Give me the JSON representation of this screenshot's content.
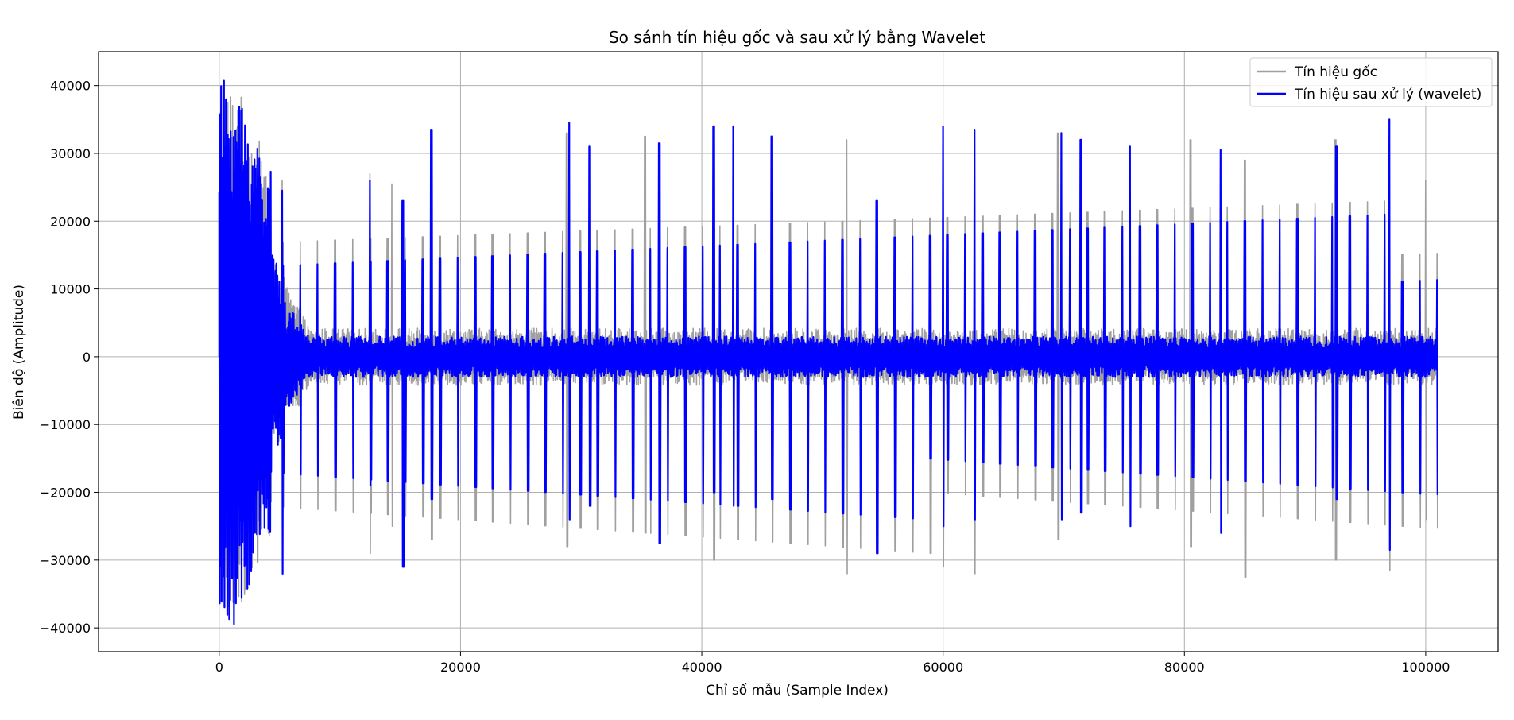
{
  "chart_data": {
    "type": "line",
    "title": "So sánh tín hiệu gốc và sau xử lý bằng Wavelet",
    "xlabel": "Chỉ số mẫu (Sample Index)",
    "ylabel": "Biên độ (Amplitude)",
    "xlim": [
      -10000,
      106000
    ],
    "ylim": [
      -43500,
      45000
    ],
    "xticks": [
      0,
      20000,
      40000,
      60000,
      80000,
      100000
    ],
    "yticks": [
      -40000,
      -30000,
      -20000,
      -10000,
      0,
      10000,
      20000,
      30000,
      40000
    ],
    "xtick_labels": [
      "0",
      "20000",
      "40000",
      "60000",
      "80000",
      "100000"
    ],
    "ytick_labels": [
      "−40000",
      "−30000",
      "−20000",
      "−10000",
      "0",
      "10000",
      "20000",
      "30000",
      "40000"
    ],
    "grid": true,
    "legend_position": "top-right",
    "series": [
      {
        "name": "Tín hiệu gốc",
        "color": "#a0a0a0",
        "x_range": [
          0,
          101000
        ],
        "baseline_noise_amplitude": 3500,
        "early_transient": {
          "x_end": 5200,
          "min": -38000,
          "max": 40500
        },
        "spikes": [
          {
            "x": 5200,
            "max": 26000,
            "min": -32000
          },
          {
            "x": 12500,
            "max": 27000,
            "min": -29000
          },
          {
            "x": 14300,
            "max": 25500,
            "min": -25000
          },
          {
            "x": 15200,
            "max": 23000,
            "min": -31000
          },
          {
            "x": 17600,
            "max": 33000,
            "min": -27000
          },
          {
            "x": 28800,
            "max": 33000,
            "min": -28000
          },
          {
            "x": 35300,
            "max": 32500,
            "min": -26000
          },
          {
            "x": 41000,
            "max": 34000,
            "min": -30000
          },
          {
            "x": 52000,
            "max": 32000,
            "min": -32000
          },
          {
            "x": 60000,
            "max": 34000,
            "min": -31000
          },
          {
            "x": 62600,
            "max": 33000,
            "min": -32000
          },
          {
            "x": 69500,
            "max": 33000,
            "min": -27000
          },
          {
            "x": 80500,
            "max": 32000,
            "min": -28000
          },
          {
            "x": 85000,
            "max": 29000,
            "min": -32500
          },
          {
            "x": 92500,
            "max": 32000,
            "min": -30000
          },
          {
            "x": 97000,
            "max": 35000,
            "min": -31500
          },
          {
            "x": 100000,
            "max": 26000,
            "min": -24000
          }
        ]
      },
      {
        "name": "Tín hiệu sau xử lý (wavelet)",
        "color": "#0000ff",
        "x_range": [
          0,
          101000
        ],
        "baseline_noise_amplitude": 2500,
        "early_transient": {
          "x_end": 5200,
          "min": -39500,
          "max": 41000
        },
        "spikes": [
          {
            "x": 5200,
            "max": 24500,
            "min": -32000
          },
          {
            "x": 12500,
            "max": 26000,
            "min": -19000
          },
          {
            "x": 15200,
            "max": 23000,
            "min": -31000
          },
          {
            "x": 17600,
            "max": 33500,
            "min": -21000
          },
          {
            "x": 29000,
            "max": 34500,
            "min": -24000
          },
          {
            "x": 30700,
            "max": 31000,
            "min": -22000
          },
          {
            "x": 36500,
            "max": 31500,
            "min": -27500
          },
          {
            "x": 41000,
            "max": 34000,
            "min": -20000
          },
          {
            "x": 42600,
            "max": 34000,
            "min": -22000
          },
          {
            "x": 45800,
            "max": 32500,
            "min": -21000
          },
          {
            "x": 54500,
            "max": 23000,
            "min": -29000
          },
          {
            "x": 60000,
            "max": 34000,
            "min": -25000
          },
          {
            "x": 62600,
            "max": 33500,
            "min": -24000
          },
          {
            "x": 69800,
            "max": 33000,
            "min": -24000
          },
          {
            "x": 71400,
            "max": 32000,
            "min": -23000
          },
          {
            "x": 75500,
            "max": 31000,
            "min": -25000
          },
          {
            "x": 83000,
            "max": 30500,
            "min": -26000
          },
          {
            "x": 92600,
            "max": 31000,
            "min": -21000
          },
          {
            "x": 97000,
            "max": 35000,
            "min": -28500
          }
        ]
      }
    ]
  }
}
